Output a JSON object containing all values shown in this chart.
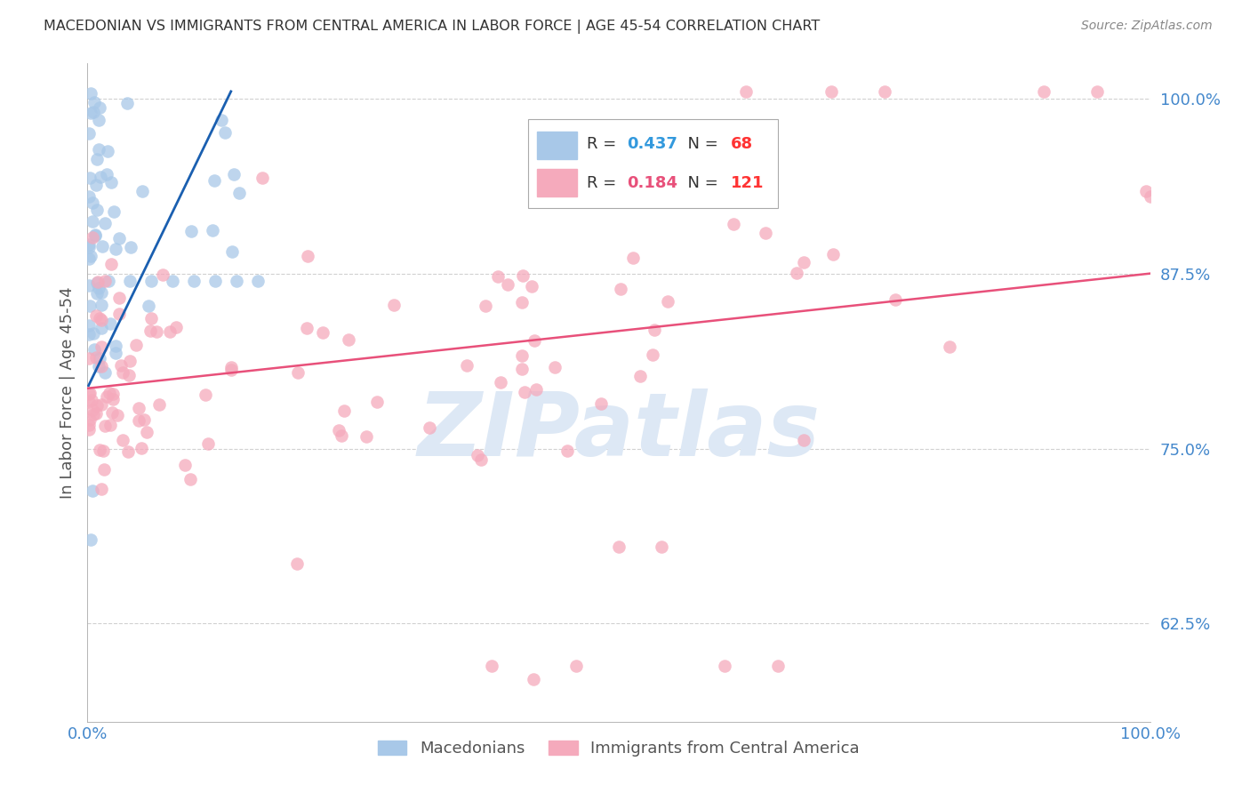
{
  "title": "MACEDONIAN VS IMMIGRANTS FROM CENTRAL AMERICA IN LABOR FORCE | AGE 45-54 CORRELATION CHART",
  "source": "Source: ZipAtlas.com",
  "ylabel": "In Labor Force | Age 45-54",
  "xlim": [
    0.0,
    1.0
  ],
  "ylim": [
    0.555,
    1.025
  ],
  "yticks": [
    0.625,
    0.75,
    0.875,
    1.0
  ],
  "ytick_labels": [
    "62.5%",
    "75.0%",
    "87.5%",
    "100.0%"
  ],
  "xtick_left": "0.0%",
  "xtick_right": "100.0%",
  "legend_blue_r": "0.437",
  "legend_blue_n": "68",
  "legend_pink_r": "0.184",
  "legend_pink_n": "121",
  "blue_scatter_color": "#a8c8e8",
  "pink_scatter_color": "#f5aabc",
  "blue_line_color": "#1a5fb0",
  "pink_line_color": "#e8507a",
  "legend_r_blue": "#3399dd",
  "legend_r_pink": "#e8507a",
  "legend_n_color": "#ff3333",
  "tick_color": "#4488cc",
  "grid_color": "#cccccc",
  "title_color": "#333333",
  "ylabel_color": "#555555",
  "watermark_text": "ZIPatlas",
  "watermark_color": "#dde8f5",
  "blue_trend_x": [
    0.001,
    0.135
  ],
  "blue_trend_y": [
    0.795,
    1.005
  ],
  "pink_trend_x": [
    0.0,
    1.0
  ],
  "pink_trend_y": [
    0.793,
    0.875
  ]
}
